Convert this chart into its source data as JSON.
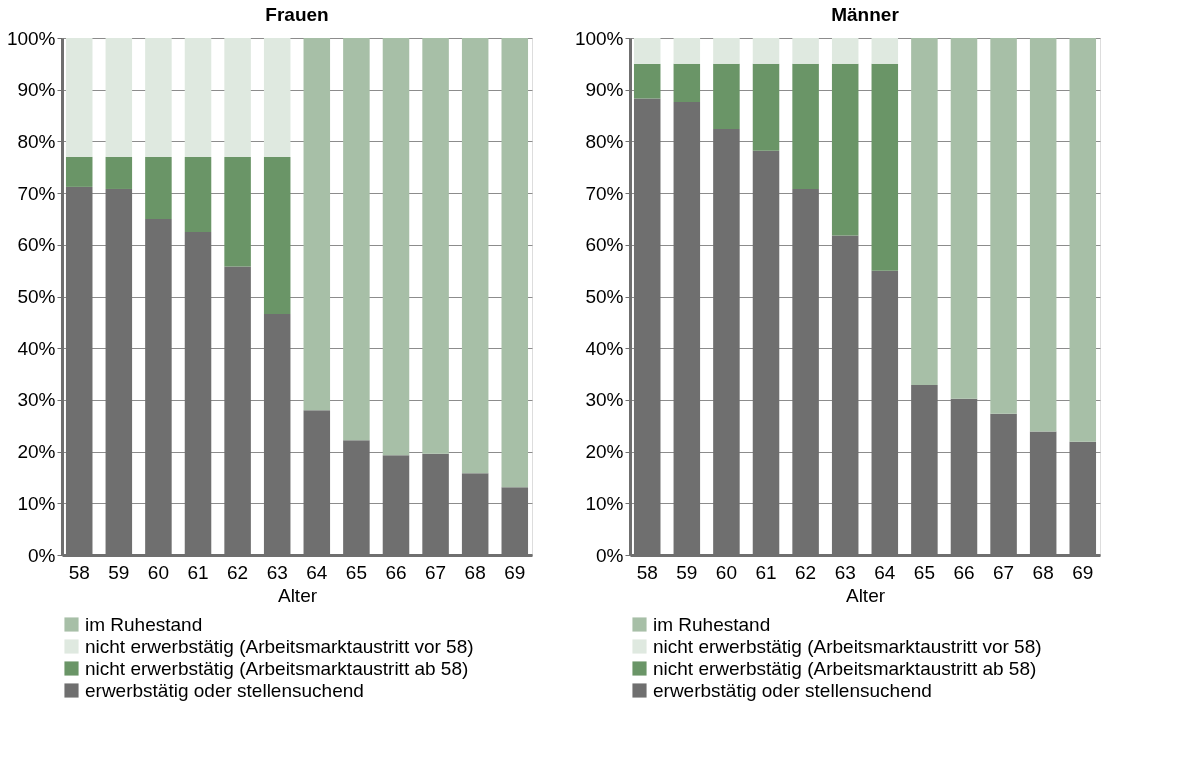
{
  "chart_data": [
    {
      "type": "bar",
      "title": "Frauen",
      "xlabel": "Alter",
      "stacked": true,
      "grid": "y",
      "legend": "bottom",
      "categories": [
        "58",
        "59",
        "60",
        "61",
        "62",
        "63",
        "64",
        "65",
        "66",
        "67",
        "68",
        "69"
      ],
      "ylim": [
        0,
        100
      ],
      "yticks": [
        {
          "value": 0,
          "label": "0%"
        },
        {
          "value": 10,
          "label": "10%"
        },
        {
          "value": 20,
          "label": "20%"
        },
        {
          "value": 30,
          "label": "30%"
        },
        {
          "value": 40,
          "label": "40%"
        },
        {
          "value": 50,
          "label": "50%"
        },
        {
          "value": 60,
          "label": "60%"
        },
        {
          "value": 70,
          "label": "70%"
        },
        {
          "value": 80,
          "label": "80%"
        },
        {
          "value": 90,
          "label": "90%"
        },
        {
          "value": 100,
          "label": "100%"
        }
      ],
      "series": [
        {
          "name": "erwerbstätig oder stellensuchend",
          "color": "#6f6f6f",
          "values": [
            71.2,
            70.8,
            65,
            62.5,
            55.8,
            46.6,
            28,
            22.2,
            19.3,
            19.6,
            15.8,
            13.1
          ]
        },
        {
          "name": "nicht erwerbstätig (Arbeitsmarktaustritt ab 58)",
          "color": "#6a9567",
          "values": [
            5.8,
            6.2,
            12,
            14.5,
            21.2,
            30.4,
            null,
            null,
            null,
            null,
            null,
            null
          ]
        },
        {
          "name": "nicht erwerbstätig (Arbeitsmarktaustritt vor 58)",
          "color": "#dfe9e0",
          "values": [
            23,
            23,
            23,
            23,
            23,
            23,
            null,
            null,
            null,
            null,
            null,
            null
          ]
        },
        {
          "name": "im Ruhestand",
          "color": "#a7bfa7",
          "values": [
            null,
            null,
            null,
            null,
            null,
            null,
            72,
            77.8,
            80.7,
            80.4,
            84.2,
            86.9
          ]
        }
      ]
    },
    {
      "type": "bar",
      "title": "Männer",
      "xlabel": "Alter",
      "stacked": true,
      "grid": "y",
      "legend": "bottom",
      "categories": [
        "58",
        "59",
        "60",
        "61",
        "62",
        "63",
        "64",
        "65",
        "66",
        "67",
        "68",
        "69"
      ],
      "ylim": [
        0,
        100
      ],
      "yticks": [
        {
          "value": 0,
          "label": "0%"
        },
        {
          "value": 10,
          "label": "10%"
        },
        {
          "value": 20,
          "label": "20%"
        },
        {
          "value": 30,
          "label": "30%"
        },
        {
          "value": 40,
          "label": "40%"
        },
        {
          "value": 50,
          "label": "50%"
        },
        {
          "value": 60,
          "label": "60%"
        },
        {
          "value": 70,
          "label": "70%"
        },
        {
          "value": 80,
          "label": "80%"
        },
        {
          "value": 90,
          "label": "90%"
        },
        {
          "value": 100,
          "label": "100%"
        }
      ],
      "series": [
        {
          "name": "erwerbstätig oder stellensuchend",
          "color": "#6f6f6f",
          "values": [
            88.3,
            87.6,
            82.4,
            78.2,
            70.8,
            61.8,
            55,
            32.9,
            30.2,
            27.3,
            23.9,
            21.9
          ]
        },
        {
          "name": "nicht erwerbstätig (Arbeitsmarktaustritt ab 58)",
          "color": "#6a9567",
          "values": [
            6.7,
            7.4,
            12.6,
            16.8,
            24.2,
            33.2,
            40,
            null,
            null,
            null,
            null,
            null
          ]
        },
        {
          "name": "nicht erwerbstätig (Arbeitsmarktaustritt vor 58)",
          "color": "#dfe9e0",
          "values": [
            5,
            5,
            5,
            5,
            5,
            5,
            5,
            null,
            null,
            null,
            null,
            null
          ]
        },
        {
          "name": "im Ruhestand",
          "color": "#a7bfa7",
          "values": [
            null,
            null,
            null,
            null,
            null,
            null,
            null,
            67.1,
            69.8,
            72.7,
            76.1,
            78.1
          ]
        }
      ]
    }
  ]
}
